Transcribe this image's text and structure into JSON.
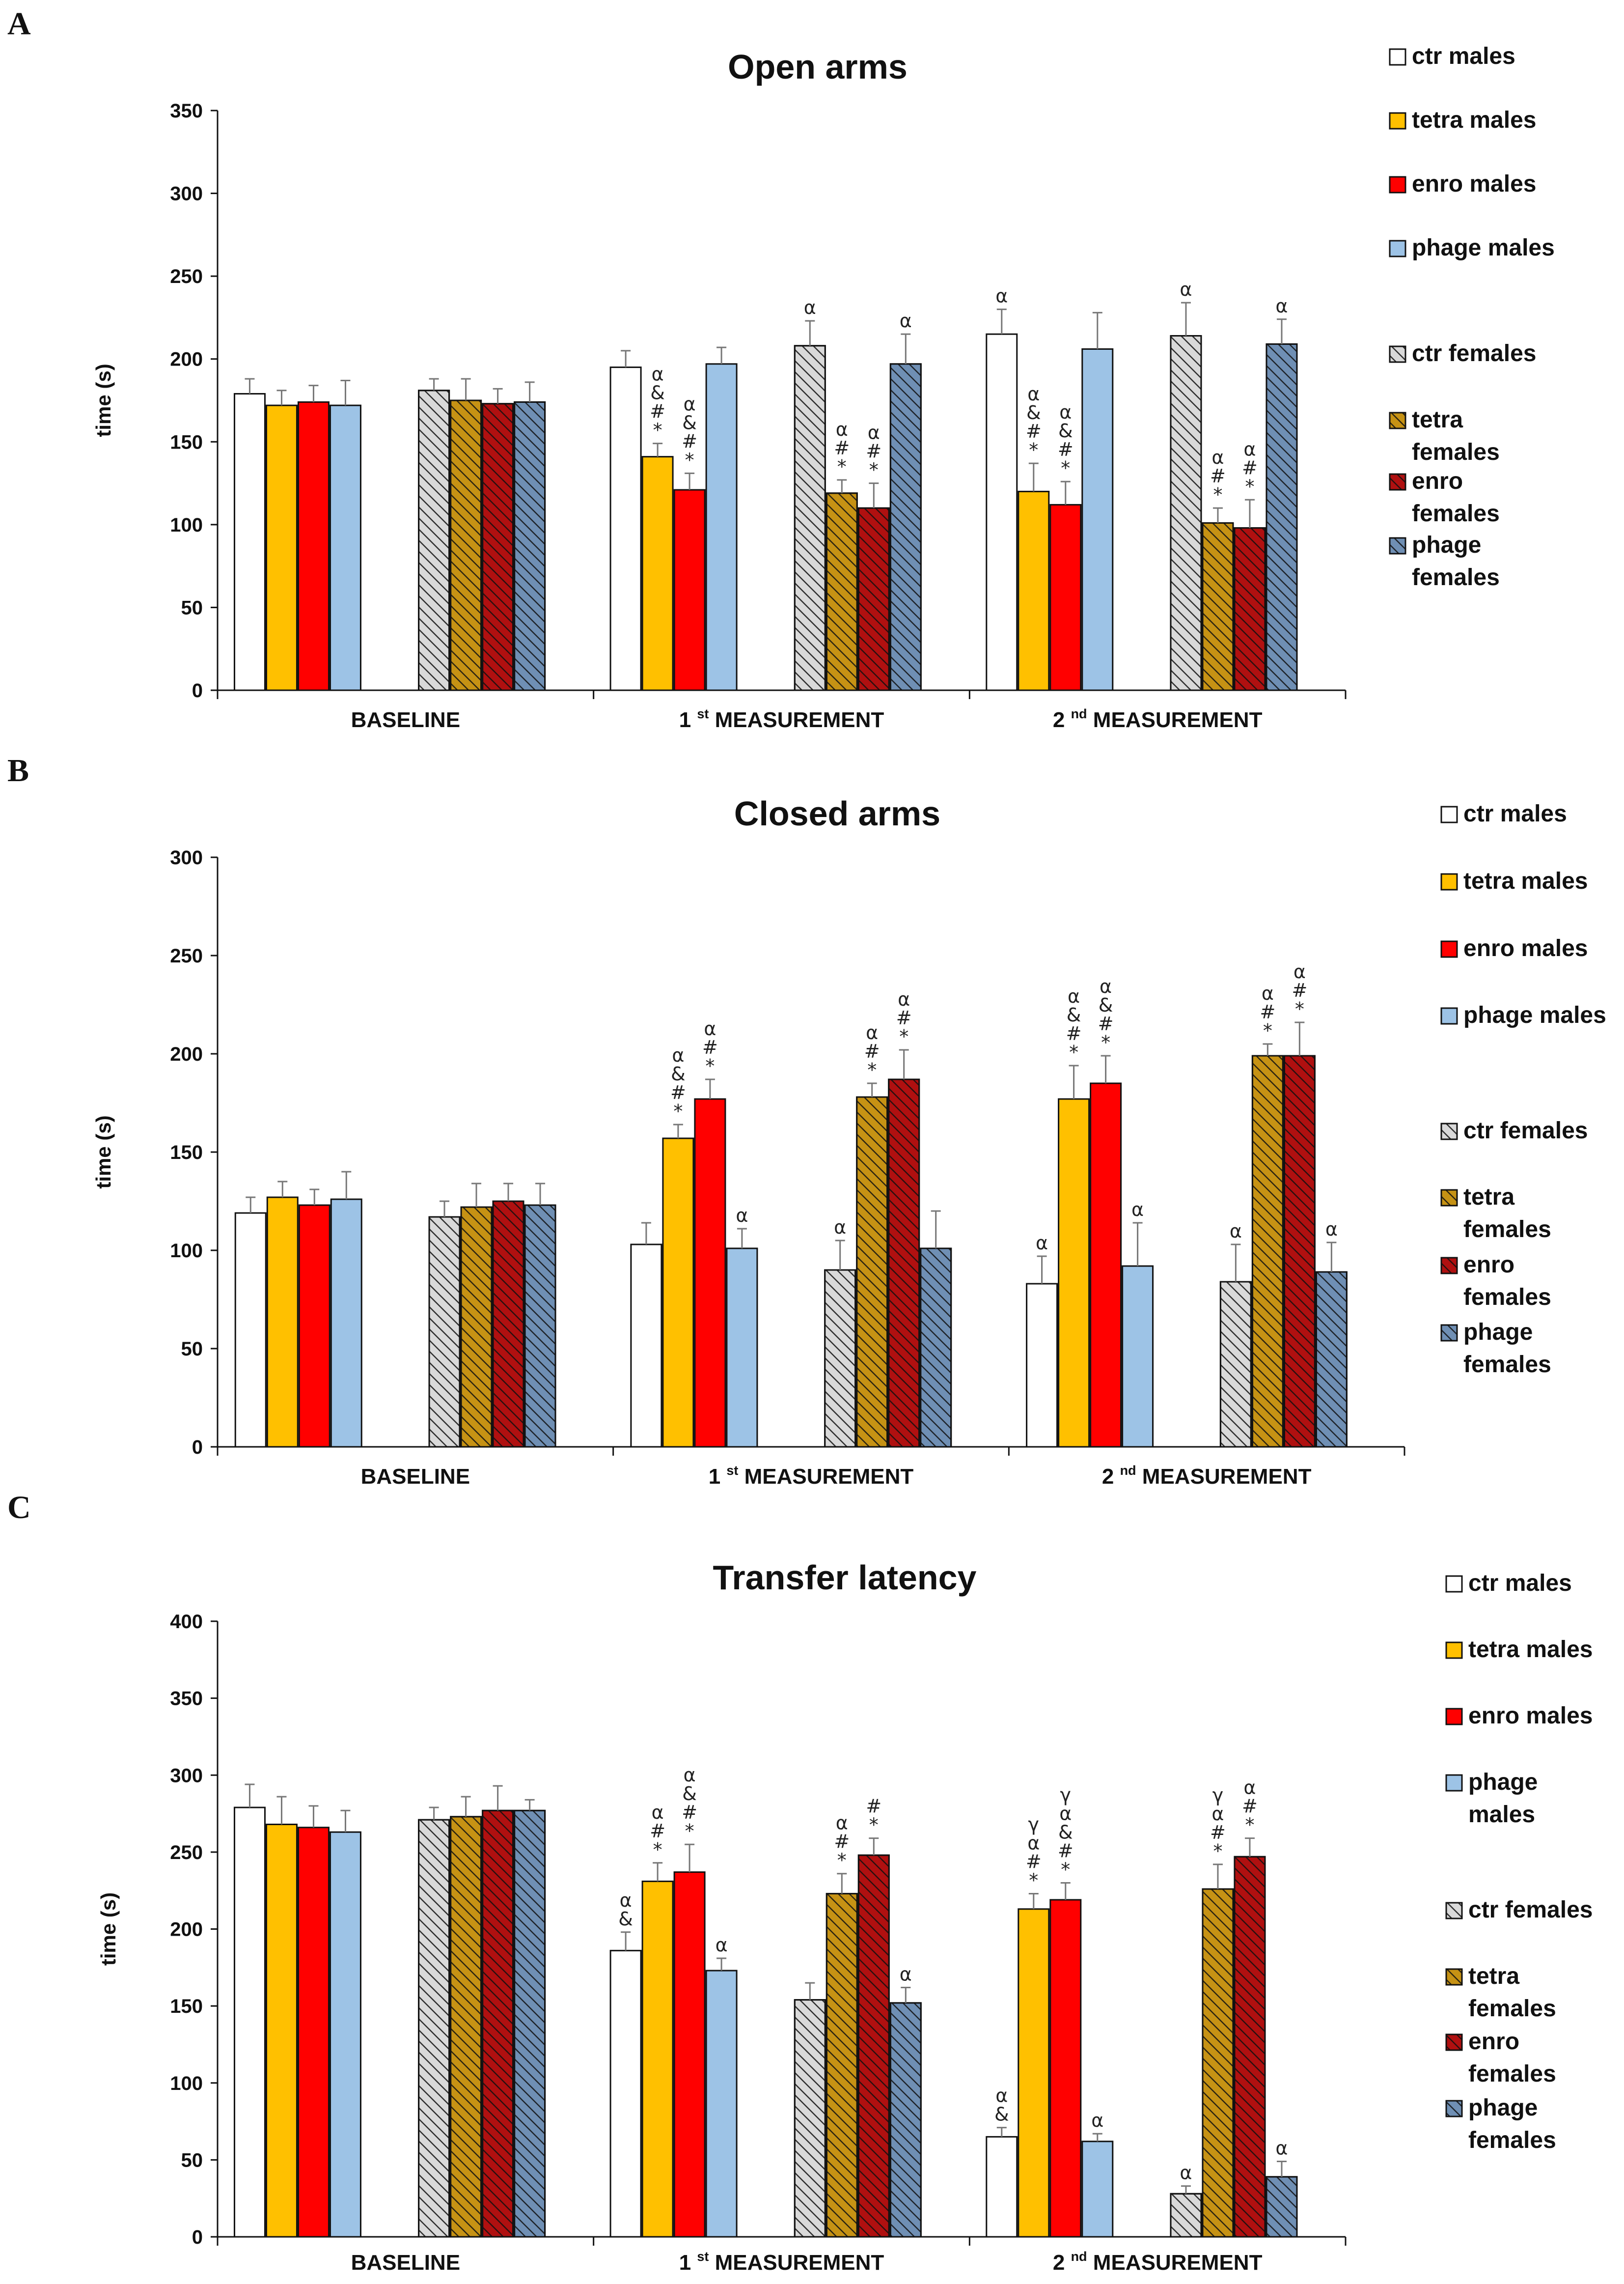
{
  "colors": {
    "ctr": "#ffffff",
    "tetra": "#ffc000",
    "enro": "#ff0000",
    "phage": "#9dc3e6",
    "ctr_f": "#d9d9d9",
    "tetra_f": "#c69214",
    "enro_f": "#b01010",
    "phage_f": "#6f8fb4"
  },
  "legend": {
    "groups": [
      {
        "key": "ctr",
        "lines": [
          "ctr males"
        ],
        "hatched": false
      },
      {
        "key": "tetra",
        "lines": [
          "tetra males"
        ],
        "hatched": false
      },
      {
        "key": "enro",
        "lines": [
          "enro males"
        ],
        "hatched": false
      },
      {
        "key": "phage",
        "lines": [
          "phage males"
        ],
        "hatched": false
      },
      {
        "key": "ctr_f",
        "lines": [
          "ctr females"
        ],
        "hatched": true
      },
      {
        "key": "tetra_f",
        "lines": [
          "tetra",
          "females"
        ],
        "hatched": true
      },
      {
        "key": "enro_f",
        "lines": [
          "enro",
          "females"
        ],
        "hatched": true
      },
      {
        "key": "phage_f",
        "lines": [
          "phage",
          "females"
        ],
        "hatched": true
      }
    ],
    "groups_c_phage_label": [
      "phage",
      "males"
    ]
  },
  "chart_data": [
    {
      "panel": "A",
      "type": "bar",
      "title": "Open arms",
      "ylabel": "time (s)",
      "ylim": [
        0,
        350
      ],
      "yticks": [
        0,
        50,
        100,
        150,
        200,
        250,
        300,
        350
      ],
      "categories": [
        {
          "main": "BASELINE",
          "sup": "",
          "prefix": ""
        },
        {
          "main": "MEASUREMENT",
          "sup": "st",
          "prefix": "1"
        },
        {
          "main": "MEASUREMENT",
          "sup": "nd",
          "prefix": "2"
        }
      ],
      "series": [
        {
          "name": "ctr males",
          "key": "ctr",
          "values": [
            179,
            195,
            215
          ],
          "errors": [
            9,
            10,
            15
          ],
          "annotations": [
            [],
            [],
            [
              "α"
            ]
          ]
        },
        {
          "name": "tetra males",
          "key": "tetra",
          "values": [
            172,
            141,
            120
          ],
          "errors": [
            9,
            8,
            17
          ],
          "annotations": [
            [],
            [
              "α",
              "&",
              "#",
              "*"
            ],
            [
              "α",
              "&",
              "#",
              "*"
            ]
          ]
        },
        {
          "name": "enro males",
          "key": "enro",
          "values": [
            174,
            121,
            112
          ],
          "errors": [
            10,
            10,
            14
          ],
          "annotations": [
            [],
            [
              "α",
              "&",
              "#",
              "*"
            ],
            [
              "α",
              "&",
              "#",
              "*"
            ]
          ]
        },
        {
          "name": "phage males",
          "key": "phage",
          "values": [
            172,
            197,
            206
          ],
          "errors": [
            15,
            10,
            22
          ],
          "annotations": [
            [],
            [],
            []
          ]
        },
        {
          "name": "ctr females",
          "key": "ctr_f",
          "values": [
            181,
            208,
            214
          ],
          "errors": [
            7,
            15,
            20
          ],
          "annotations": [
            [],
            [
              "α"
            ],
            [
              "α"
            ]
          ]
        },
        {
          "name": "tetra females",
          "key": "tetra_f",
          "values": [
            175,
            119,
            101
          ],
          "errors": [
            13,
            8,
            9
          ],
          "annotations": [
            [],
            [
              "α",
              "#",
              "*"
            ],
            [
              "α",
              "#",
              "*"
            ]
          ]
        },
        {
          "name": "enro females",
          "key": "enro_f",
          "values": [
            173,
            110,
            98
          ],
          "errors": [
            9,
            15,
            17
          ],
          "annotations": [
            [],
            [
              "α",
              "#",
              "*"
            ],
            [
              "α",
              "#",
              "*"
            ]
          ]
        },
        {
          "name": "phage females",
          "key": "phage_f",
          "values": [
            174,
            197,
            209
          ],
          "errors": [
            12,
            18,
            15
          ],
          "annotations": [
            [],
            [
              "α"
            ],
            [
              "α"
            ]
          ]
        }
      ]
    },
    {
      "panel": "B",
      "type": "bar",
      "title": "Closed arms",
      "ylabel": "time (s)",
      "ylim": [
        0,
        300
      ],
      "yticks": [
        0,
        50,
        100,
        150,
        200,
        250,
        300
      ],
      "categories": [
        {
          "main": "BASELINE",
          "sup": "",
          "prefix": ""
        },
        {
          "main": "MEASUREMENT",
          "sup": "st",
          "prefix": "1"
        },
        {
          "main": "MEASUREMENT",
          "sup": "nd",
          "prefix": "2"
        }
      ],
      "series": [
        {
          "name": "ctr males",
          "key": "ctr",
          "values": [
            119,
            103,
            83
          ],
          "errors": [
            8,
            11,
            14
          ],
          "annotations": [
            [],
            [],
            [
              "α"
            ]
          ]
        },
        {
          "name": "tetra males",
          "key": "tetra",
          "values": [
            127,
            157,
            177
          ],
          "errors": [
            8,
            7,
            17
          ],
          "annotations": [
            [],
            [
              "α",
              "&",
              "#",
              "*"
            ],
            [
              "α",
              "&",
              "#",
              "*"
            ]
          ]
        },
        {
          "name": "enro males",
          "key": "enro",
          "values": [
            123,
            177,
            185
          ],
          "errors": [
            8,
            10,
            14
          ],
          "annotations": [
            [],
            [
              "α",
              "#",
              "*"
            ],
            [
              "α",
              "&",
              "#",
              "*"
            ]
          ]
        },
        {
          "name": "phage males",
          "key": "phage",
          "values": [
            126,
            101,
            92
          ],
          "errors": [
            14,
            10,
            22
          ],
          "annotations": [
            [],
            [
              "α"
            ],
            [
              "α"
            ]
          ]
        },
        {
          "name": "ctr females",
          "key": "ctr_f",
          "values": [
            117,
            90,
            84
          ],
          "errors": [
            8,
            15,
            19
          ],
          "annotations": [
            [],
            [
              "α"
            ],
            [
              "α"
            ]
          ]
        },
        {
          "name": "tetra females",
          "key": "tetra_f",
          "values": [
            122,
            178,
            199
          ],
          "errors": [
            12,
            7,
            6
          ],
          "annotations": [
            [],
            [
              "α",
              "#",
              "*"
            ],
            [
              "α",
              "#",
              "*"
            ]
          ]
        },
        {
          "name": "enro females",
          "key": "enro_f",
          "values": [
            125,
            187,
            199
          ],
          "errors": [
            9,
            15,
            17
          ],
          "annotations": [
            [],
            [
              "α",
              "#",
              "*"
            ],
            [
              "α",
              "#",
              "*"
            ]
          ]
        },
        {
          "name": "phage females",
          "key": "phage_f",
          "values": [
            123,
            101,
            89
          ],
          "errors": [
            11,
            19,
            15
          ],
          "annotations": [
            [],
            [],
            [
              "α"
            ]
          ]
        }
      ]
    },
    {
      "panel": "C",
      "type": "bar",
      "title": "Transfer latency",
      "ylabel": "time (s)",
      "ylim": [
        0,
        400
      ],
      "yticks": [
        0,
        50,
        100,
        150,
        200,
        250,
        300,
        350,
        400
      ],
      "categories": [
        {
          "main": "BASELINE",
          "sup": "",
          "prefix": ""
        },
        {
          "main": "MEASUREMENT",
          "sup": "st",
          "prefix": "1"
        },
        {
          "main": "MEASUREMENT",
          "sup": "nd",
          "prefix": "2"
        }
      ],
      "series": [
        {
          "name": "ctr males",
          "key": "ctr",
          "values": [
            279,
            186,
            65
          ],
          "errors": [
            15,
            12,
            6
          ],
          "annotations": [
            [],
            [
              "α",
              "&"
            ],
            [
              "α",
              "&"
            ]
          ]
        },
        {
          "name": "tetra males",
          "key": "tetra",
          "values": [
            268,
            231,
            213
          ],
          "errors": [
            18,
            12,
            10
          ],
          "annotations": [
            [],
            [
              "α",
              "#",
              "*"
            ],
            [
              "γ",
              "α",
              "#",
              "*"
            ]
          ]
        },
        {
          "name": "enro males",
          "key": "enro",
          "values": [
            266,
            237,
            219
          ],
          "errors": [
            14,
            18,
            11
          ],
          "annotations": [
            [],
            [
              "α",
              "&",
              "#",
              "*"
            ],
            [
              "γ",
              "α",
              "&",
              "#",
              "*"
            ]
          ]
        },
        {
          "name": "phage males",
          "key": "phage",
          "values": [
            263,
            173,
            62
          ],
          "errors": [
            14,
            8,
            5
          ],
          "annotations": [
            [],
            [
              "α"
            ],
            [
              "α"
            ]
          ]
        },
        {
          "name": "ctr females",
          "key": "ctr_f",
          "values": [
            271,
            154,
            28
          ],
          "errors": [
            8,
            11,
            5
          ],
          "annotations": [
            [],
            [],
            [
              "α"
            ]
          ]
        },
        {
          "name": "tetra females",
          "key": "tetra_f",
          "values": [
            273,
            223,
            226
          ],
          "errors": [
            13,
            13,
            16
          ],
          "annotations": [
            [],
            [
              "α",
              "#",
              "*"
            ],
            [
              "γ",
              "α",
              "#",
              "*"
            ]
          ]
        },
        {
          "name": "enro females",
          "key": "enro_f",
          "values": [
            277,
            248,
            247
          ],
          "errors": [
            16,
            11,
            12
          ],
          "annotations": [
            [],
            [
              "#",
              "*"
            ],
            [
              "α",
              "#",
              "*"
            ]
          ]
        },
        {
          "name": "phage females",
          "key": "phage_f",
          "values": [
            277,
            152,
            39
          ],
          "errors": [
            7,
            10,
            10
          ],
          "annotations": [
            [],
            [
              "α"
            ],
            [
              "α"
            ]
          ]
        }
      ]
    }
  ]
}
